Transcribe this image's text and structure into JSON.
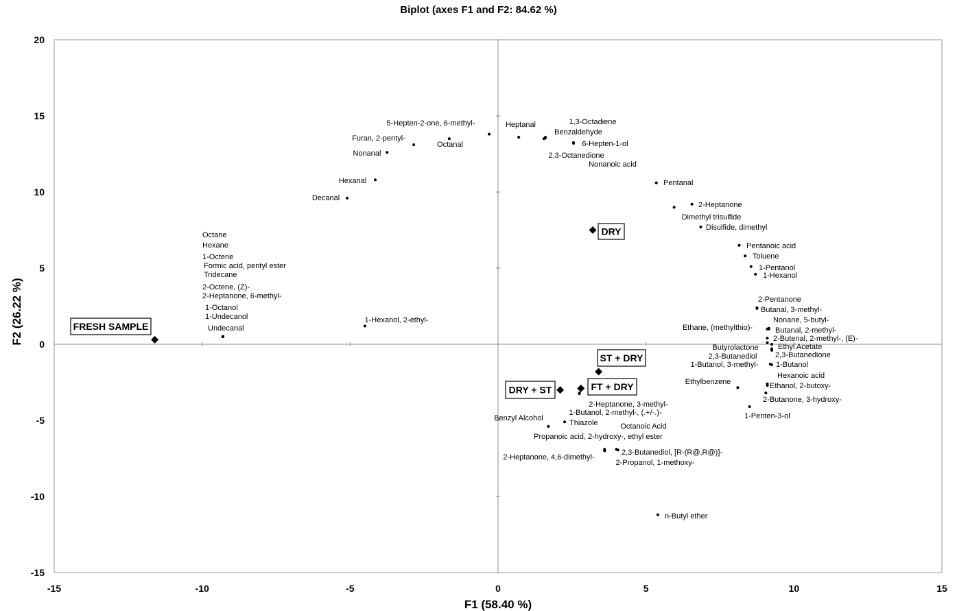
{
  "chart_data": {
    "type": "scatter",
    "title": "Biplot (axes F1 and F2: 84.62 %)",
    "xlabel": "F1 (58.40 %)",
    "ylabel": "F2 (26.22 %)",
    "xlim": [
      -15,
      15
    ],
    "ylim": [
      -15,
      20
    ],
    "xticks": [
      -15,
      -10,
      -5,
      0,
      5,
      10,
      15
    ],
    "yticks": [
      -15,
      -10,
      -5,
      0,
      5,
      10,
      15,
      20
    ],
    "grid": false,
    "samples": [
      {
        "label": "FRESH SAMPLE",
        "x": -11.6,
        "y": 0.3
      },
      {
        "label": "DRY",
        "x": 3.2,
        "y": 7.5
      },
      {
        "label": "ST + DRY",
        "x": 3.4,
        "y": -1.8
      },
      {
        "label": "DRY + ST",
        "x": 2.1,
        "y": -3.0
      },
      {
        "label": "FT + DRY",
        "x": 2.8,
        "y": -2.9
      }
    ],
    "variables": [
      {
        "label": "5-Hepten-2-one, 6-methyl-",
        "x": -0.3,
        "y": 13.8
      },
      {
        "label": "Furan, 2-pentyl-",
        "x": -2.85,
        "y": 13.1
      },
      {
        "label": "Octanal",
        "x": -1.65,
        "y": 13.5
      },
      {
        "label": "Nonanal",
        "x": -3.75,
        "y": 12.6
      },
      {
        "label": "Hexanal",
        "x": -4.15,
        "y": 10.8
      },
      {
        "label": "Decanal",
        "x": -5.1,
        "y": 9.6
      },
      {
        "label": "Heptanal",
        "x": 0.7,
        "y": 13.6
      },
      {
        "label": "1,3-Octadiene",
        "x": 1.6,
        "y": 13.6
      },
      {
        "label": "Benzaldehyde",
        "x": 1.55,
        "y": 13.5
      },
      {
        "label": "6-Hepten-1-ol",
        "x": 2.55,
        "y": 13.2
      },
      {
        "label": "2,3-Octanedione",
        "x": 1.6,
        "y": 13.55
      },
      {
        "label": "Nonanoic acid",
        "x": 2.55,
        "y": 13.25
      },
      {
        "label": "Pentanal",
        "x": 5.35,
        "y": 10.6
      },
      {
        "label": "2-Heptanone",
        "x": 6.55,
        "y": 9.2
      },
      {
        "label": "Dimethyl trisulfide",
        "x": 5.95,
        "y": 9.0
      },
      {
        "label": "Disulfide, dimethyl",
        "x": 6.85,
        "y": 7.7
      },
      {
        "label": "Pentanoic acid",
        "x": 8.15,
        "y": 6.5
      },
      {
        "label": "Toluene",
        "x": 8.35,
        "y": 5.8
      },
      {
        "label": "1-Pentanol",
        "x": 8.55,
        "y": 5.1
      },
      {
        "label": "1-Hexanol",
        "x": 8.7,
        "y": 4.6
      },
      {
        "label": "2-Pentanone",
        "x": 8.75,
        "y": 2.4
      },
      {
        "label": "Butanal, 3-methyl-",
        "x": 8.75,
        "y": 2.35
      },
      {
        "label": "Ethane, (methylthio)-",
        "x": 9.1,
        "y": 1.0
      },
      {
        "label": "Nonane, 5-butyl-",
        "x": 9.15,
        "y": 1.05
      },
      {
        "label": "Butanal, 2-methyl-",
        "x": 9.15,
        "y": 1.0
      },
      {
        "label": "2-Butenal, 2-methyl-, (E)-",
        "x": 9.1,
        "y": 0.4
      },
      {
        "label": "Butyrolactone",
        "x": 9.1,
        "y": 0.1
      },
      {
        "label": "Ethyl Acetate",
        "x": 9.25,
        "y": 0.0
      },
      {
        "label": "2,3-Butanediol",
        "x": 9.25,
        "y": -0.3
      },
      {
        "label": "2,3-Butanedione",
        "x": 9.25,
        "y": -0.4
      },
      {
        "label": "1-Butanol, 3-methyl-",
        "x": 9.2,
        "y": -1.3
      },
      {
        "label": "1-Butanol",
        "x": 9.25,
        "y": -1.35
      },
      {
        "label": "Hexanoic acid",
        "x": 9.1,
        "y": -2.6
      },
      {
        "label": "Ethylbenzene",
        "x": 8.1,
        "y": -2.85
      },
      {
        "label": "Ethanol, 2-butoxy-",
        "x": 9.1,
        "y": -2.7
      },
      {
        "label": "2-Butanone, 3-hydroxy-",
        "x": 9.05,
        "y": -3.2
      },
      {
        "label": "1-Penten-3-ol",
        "x": 8.5,
        "y": -4.1
      },
      {
        "label": "Octane",
        "x": -9.3,
        "y": 0.5
      },
      {
        "label": "Hexane",
        "x": -9.3,
        "y": 0.5
      },
      {
        "label": "1-Octene",
        "x": -9.3,
        "y": 0.5
      },
      {
        "label": "Formic acid, pentyl ester",
        "x": -9.3,
        "y": 0.5
      },
      {
        "label": "Tridecane",
        "x": -9.3,
        "y": 0.5
      },
      {
        "label": "2-Octene, (Z)-",
        "x": -9.3,
        "y": 0.5
      },
      {
        "label": "2-Heptanone, 6-methyl-",
        "x": -9.3,
        "y": 0.5
      },
      {
        "label": "1-Octanol",
        "x": -9.3,
        "y": 0.5
      },
      {
        "label": "1-Undecanol",
        "x": -9.3,
        "y": 0.5
      },
      {
        "label": "Undecanal",
        "x": -9.3,
        "y": 0.5
      },
      {
        "label": "1-Hexanol, 2-ethyl-",
        "x": -4.5,
        "y": 1.2
      },
      {
        "label": "2-Heptanone, 3-methyl-",
        "x": 2.75,
        "y": -3.2
      },
      {
        "label": "1-Butanol, 2-methyl-, (.+/-.)-",
        "x": 2.75,
        "y": -3.25
      },
      {
        "label": "Thiazole",
        "x": 2.25,
        "y": -5.1
      },
      {
        "label": "Benzyl Alcohol",
        "x": 1.7,
        "y": -5.4
      },
      {
        "label": "Octanoic Acid",
        "x": 3.6,
        "y": -6.9
      },
      {
        "label": "Propanoic acid, 2-hydroxy-, ethyl ester",
        "x": 3.6,
        "y": -6.95
      },
      {
        "label": "2-Heptanone, 4,6-dimethyl-",
        "x": 3.6,
        "y": -7.0
      },
      {
        "label": "2,3-Butanediol, [R-(R@,R@)]-",
        "x": 4.0,
        "y": -6.9
      },
      {
        "label": "2-Propanol, 1-methoxy-",
        "x": 4.05,
        "y": -6.95
      },
      {
        "label": "n-Butyl ether",
        "x": 5.4,
        "y": -11.2
      }
    ]
  }
}
